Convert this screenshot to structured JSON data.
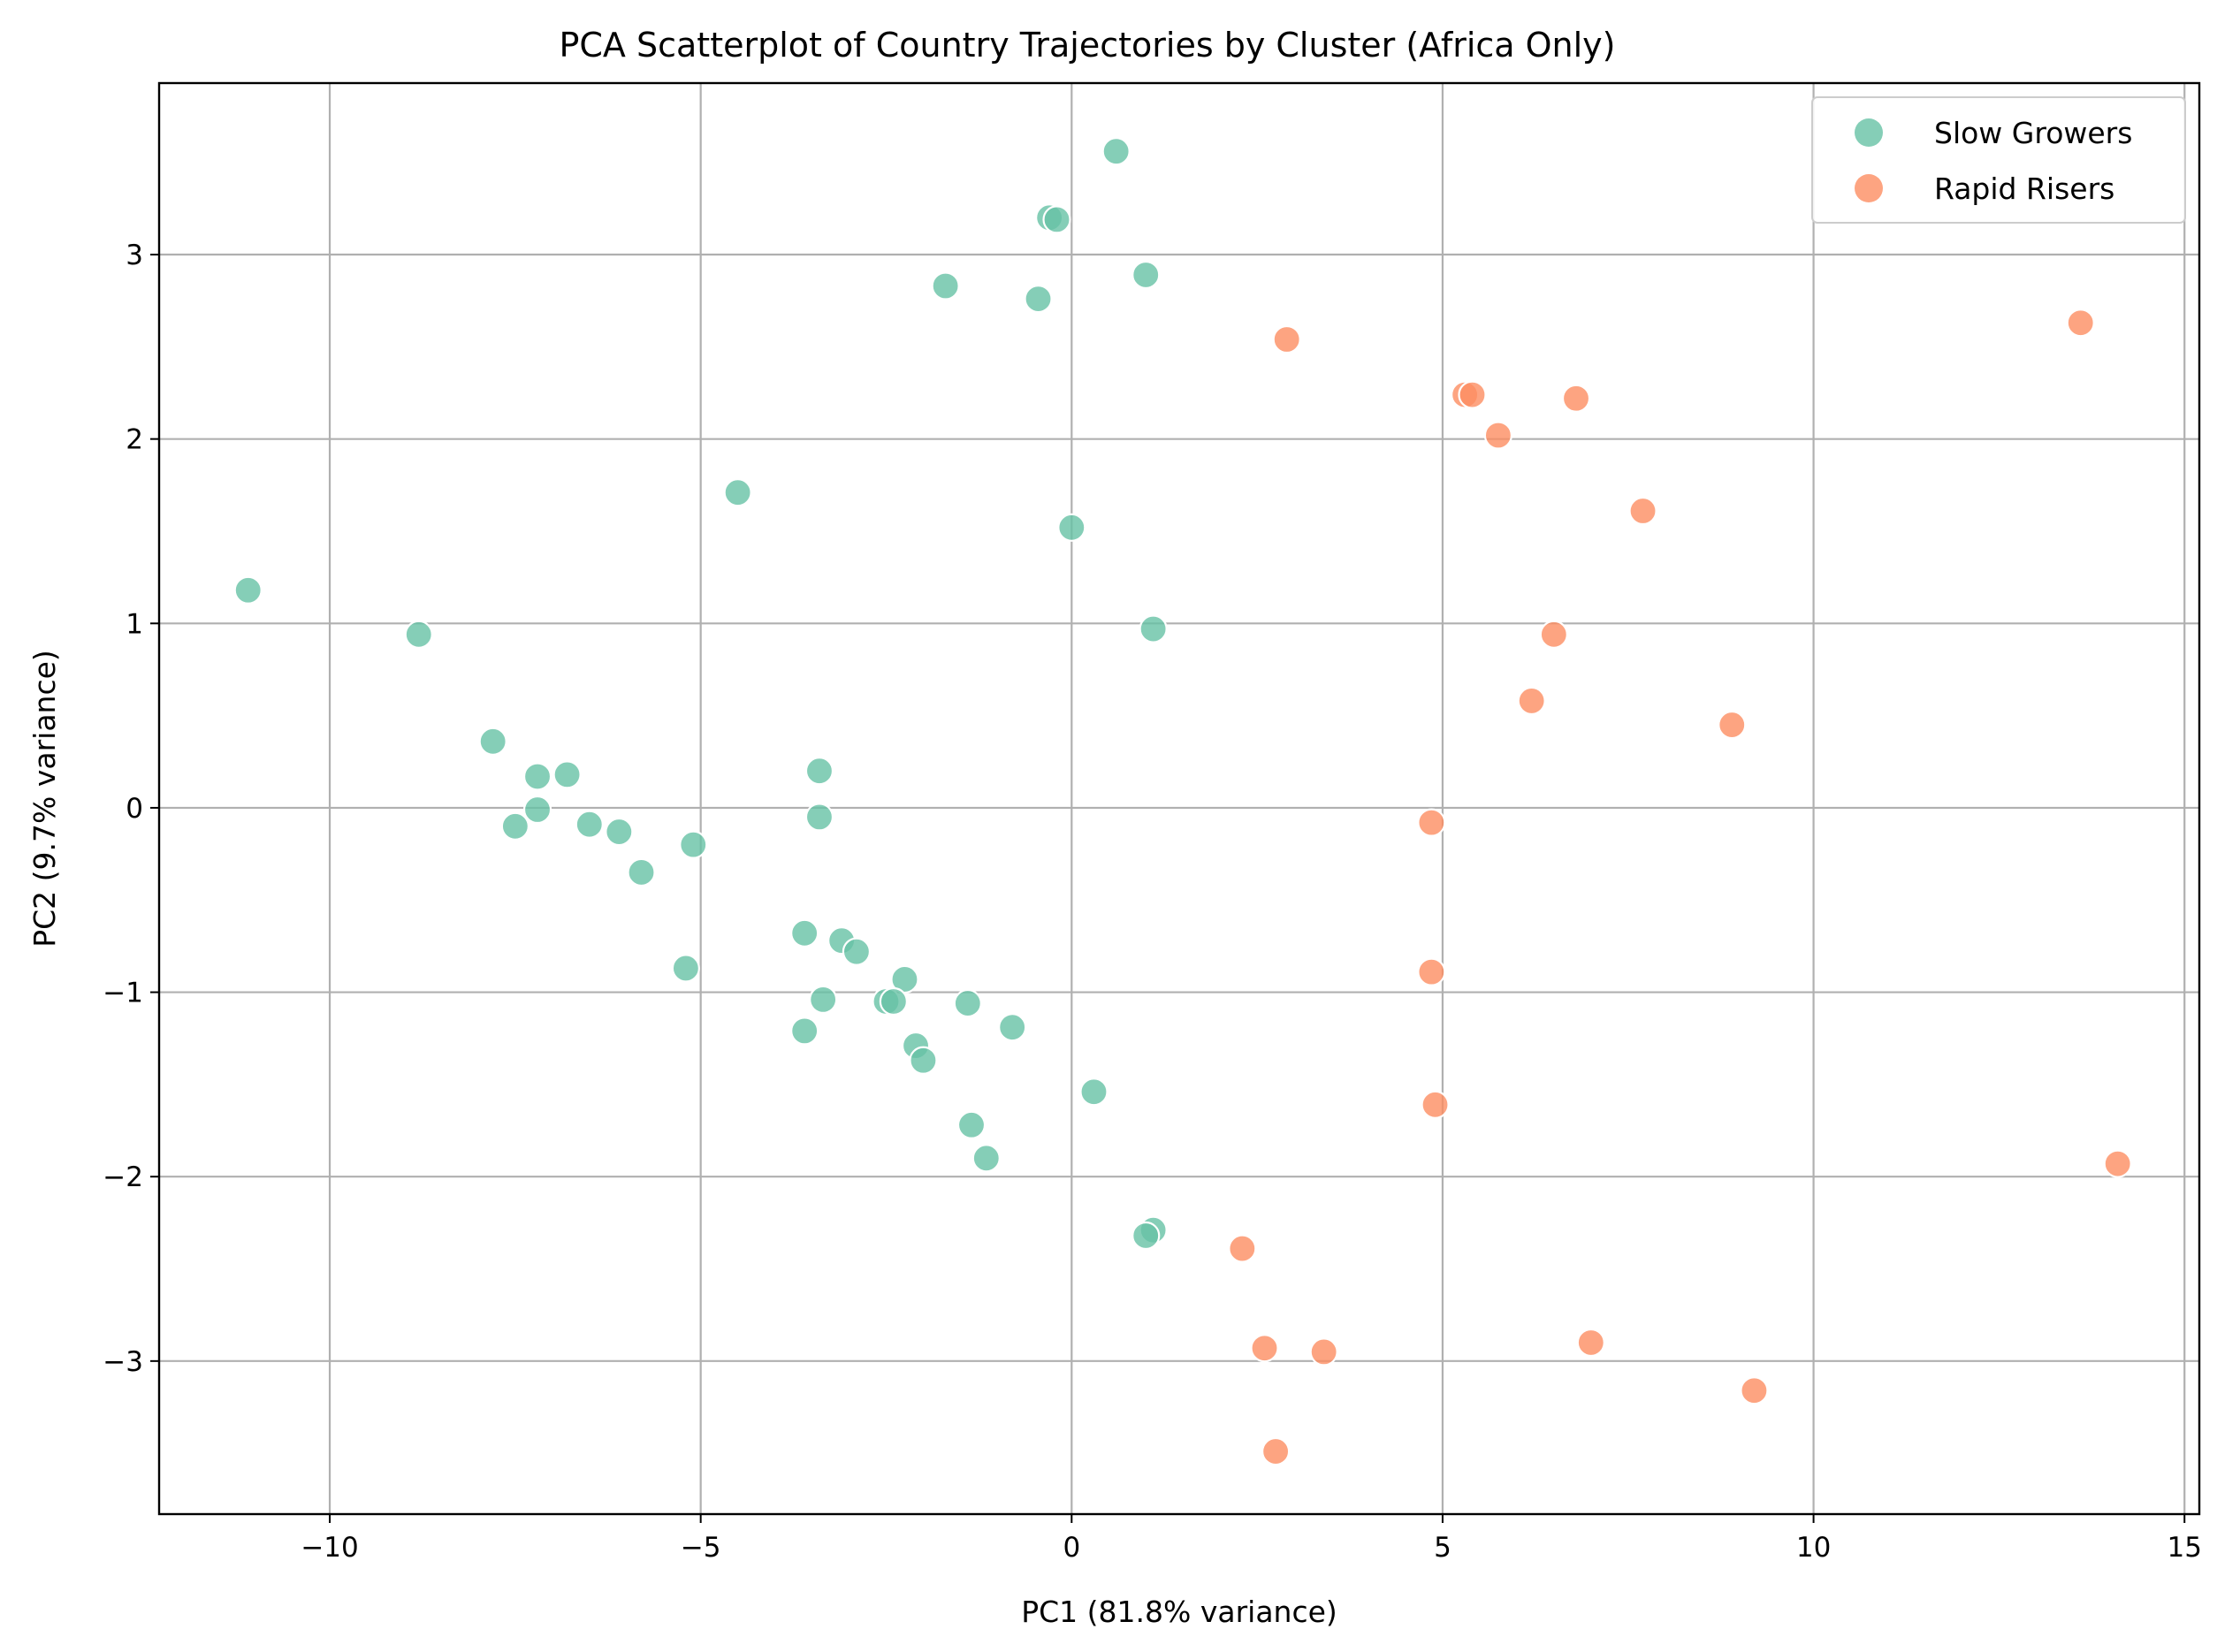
{
  "chart_data": {
    "type": "scatter",
    "title": "PCA Scatterplot of Country Trajectories by Cluster (Africa Only)",
    "xlabel": "PC1 (81.8% variance)",
    "ylabel": "PC2 (9.7% variance)",
    "xlim": [
      -12.3,
      15.2
    ],
    "ylim": [
      -3.83,
      3.93
    ],
    "x_ticks": [
      -10,
      -5,
      0,
      5,
      10,
      15
    ],
    "x_tick_labels": [
      "−10",
      "−5",
      "0",
      "5",
      "10",
      "15"
    ],
    "y_ticks": [
      -3,
      -2,
      -1,
      0,
      1,
      2,
      3
    ],
    "y_tick_labels": [
      "−3",
      "−2",
      "−1",
      "0",
      "1",
      "2",
      "3"
    ],
    "grid": true,
    "legend_position": "top-right",
    "series": [
      {
        "name": "Slow Growers",
        "color": "#66c2a5",
        "points": [
          [
            0.6,
            3.56
          ],
          [
            -0.3,
            3.2
          ],
          [
            -0.2,
            3.19
          ],
          [
            1.0,
            2.89
          ],
          [
            -1.7,
            2.83
          ],
          [
            -0.45,
            2.76
          ],
          [
            -4.5,
            1.71
          ],
          [
            0.0,
            1.52
          ],
          [
            1.1,
            0.97
          ],
          [
            -11.1,
            1.18
          ],
          [
            -8.8,
            0.94
          ],
          [
            -7.8,
            0.36
          ],
          [
            -7.2,
            0.17
          ],
          [
            -6.8,
            0.18
          ],
          [
            -7.5,
            -0.1
          ],
          [
            -7.2,
            -0.01
          ],
          [
            -6.5,
            -0.09
          ],
          [
            -6.1,
            -0.13
          ],
          [
            -5.8,
            -0.35
          ],
          [
            -5.1,
            -0.2
          ],
          [
            -3.4,
            0.2
          ],
          [
            -3.4,
            -0.05
          ],
          [
            -5.2,
            -0.87
          ],
          [
            -3.6,
            -0.68
          ],
          [
            -3.1,
            -0.72
          ],
          [
            -2.9,
            -0.78
          ],
          [
            -2.25,
            -0.93
          ],
          [
            -3.35,
            -1.04
          ],
          [
            -2.5,
            -1.05
          ],
          [
            -2.4,
            -1.05
          ],
          [
            -1.4,
            -1.06
          ],
          [
            -0.8,
            -1.19
          ],
          [
            -3.6,
            -1.21
          ],
          [
            -2.1,
            -1.29
          ],
          [
            -2.0,
            -1.37
          ],
          [
            0.3,
            -1.54
          ],
          [
            -1.35,
            -1.72
          ],
          [
            -1.15,
            -1.9
          ],
          [
            1.1,
            -2.29
          ],
          [
            1.0,
            -2.32
          ]
        ]
      },
      {
        "name": "Rapid Risers",
        "color": "#fc8d62",
        "points": [
          [
            13.6,
            2.63
          ],
          [
            2.9,
            2.54
          ],
          [
            5.3,
            2.24
          ],
          [
            5.4,
            2.24
          ],
          [
            6.8,
            2.22
          ],
          [
            5.75,
            2.02
          ],
          [
            7.7,
            1.61
          ],
          [
            6.5,
            0.94
          ],
          [
            6.2,
            0.58
          ],
          [
            8.9,
            0.45
          ],
          [
            4.85,
            -0.08
          ],
          [
            4.85,
            -0.89
          ],
          [
            4.9,
            -1.61
          ],
          [
            14.1,
            -1.93
          ],
          [
            2.3,
            -2.39
          ],
          [
            2.6,
            -2.93
          ],
          [
            3.4,
            -2.95
          ],
          [
            7.0,
            -2.9
          ],
          [
            9.2,
            -3.16
          ],
          [
            2.75,
            -3.49
          ]
        ]
      }
    ]
  }
}
